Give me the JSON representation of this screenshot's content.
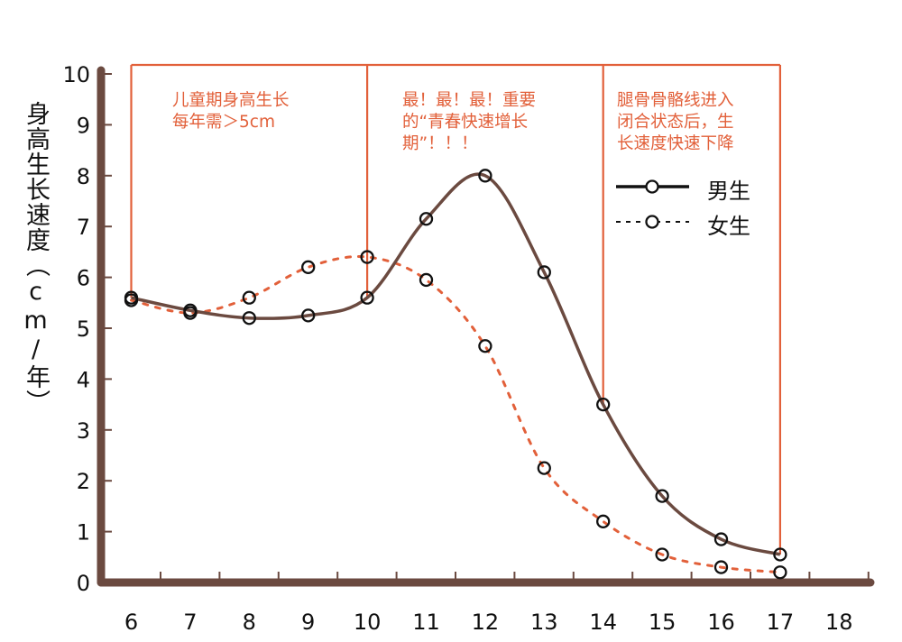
{
  "chart_data": {
    "type": "line",
    "title": "",
    "xlabel": "",
    "ylabel": "身高生长速度（cm/年）",
    "x": [
      6,
      7,
      8,
      9,
      10,
      11,
      12,
      13,
      14,
      15,
      16,
      17
    ],
    "x_ticks": [
      "6",
      "7",
      "8",
      "9",
      "10",
      "11",
      "12",
      "13",
      "14",
      "15",
      "16",
      "17",
      "18"
    ],
    "y_ticks": [
      "0",
      "1",
      "2",
      "3",
      "4",
      "5",
      "6",
      "7",
      "8",
      "9",
      "10"
    ],
    "ylim": [
      0,
      10
    ],
    "xlim": [
      5.5,
      18.5
    ],
    "grid": false,
    "legend_position": "upper right",
    "series": [
      {
        "name": "男生",
        "style": "solid",
        "color": "#6b4a40",
        "values": [
          5.6,
          5.35,
          5.2,
          5.25,
          5.6,
          7.15,
          8.0,
          6.1,
          3.5,
          1.7,
          0.85,
          0.55
        ]
      },
      {
        "name": "女生",
        "style": "dashed",
        "color": "#e2603a",
        "values": [
          5.55,
          5.3,
          5.6,
          6.2,
          6.4,
          5.95,
          4.65,
          2.25,
          1.2,
          0.55,
          0.3,
          0.2
        ]
      }
    ],
    "annotations": [
      {
        "region": [
          6,
          10
        ],
        "text": "儿童期身高生长\n每年需＞5cm"
      },
      {
        "region": [
          10,
          14
        ],
        "text": "最！最！最！重要\n的“青春快速增长\n期”！！！"
      },
      {
        "region": [
          14,
          17
        ],
        "text": "腿骨骨骼线进入\n闭合状态后，生\n长速度快速下降"
      }
    ]
  },
  "axis": {
    "ylabel": "身高生长速度（cm/年）"
  },
  "annotations": {
    "childhood": "儿童期身高生长\n每年需＞5cm",
    "puberty": "最！最！最！重要\n的“青春快速增长\n期”！！！",
    "closure": "腿骨骨骼线进入\n闭合状态后，生\n长速度快速下降"
  },
  "legend": {
    "boys": "男生",
    "girls": "女生"
  },
  "colors": {
    "axis": "#6b4a40",
    "accent": "#e2603a",
    "boys_line": "#6b4a40",
    "marker": "#111111"
  }
}
